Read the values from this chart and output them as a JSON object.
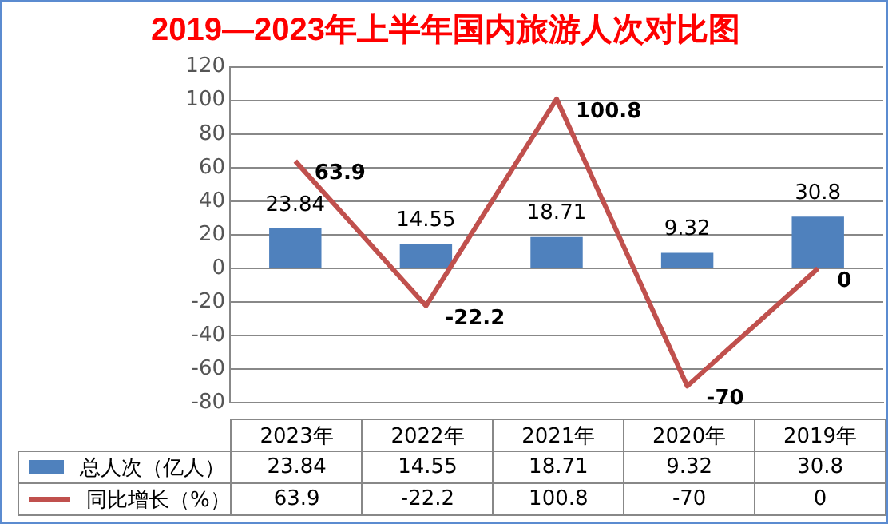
{
  "chart_data": {
    "type": "bar",
    "title": "2019—2023年上半年国内旅游人次对比图",
    "categories": [
      "2023年",
      "2022年",
      "2021年",
      "2020年",
      "2019年"
    ],
    "series": [
      {
        "name": "总人次（亿人）",
        "color": "#4f81bd",
        "values": [
          23.84,
          14.55,
          18.71,
          9.32,
          30.8
        ],
        "value_labels": [
          "23.84",
          "14.55",
          "18.71",
          "9.32",
          "30.8"
        ]
      },
      {
        "name": "同比增长（%）",
        "type": "line",
        "color": "#c0504d",
        "values": [
          63.9,
          -22.2,
          100.8,
          -70,
          0
        ],
        "value_labels": [
          "63.9",
          "-22.2",
          "100.8",
          "-70",
          "0"
        ]
      }
    ],
    "ylim": [
      -80,
      120
    ],
    "yticks": [
      -80,
      -60,
      -40,
      -20,
      0,
      20,
      40,
      60,
      80,
      100,
      120
    ],
    "grid": "y",
    "legend": "bottom",
    "data_labels": true,
    "marker": "none",
    "tick_labels": "y"
  }
}
